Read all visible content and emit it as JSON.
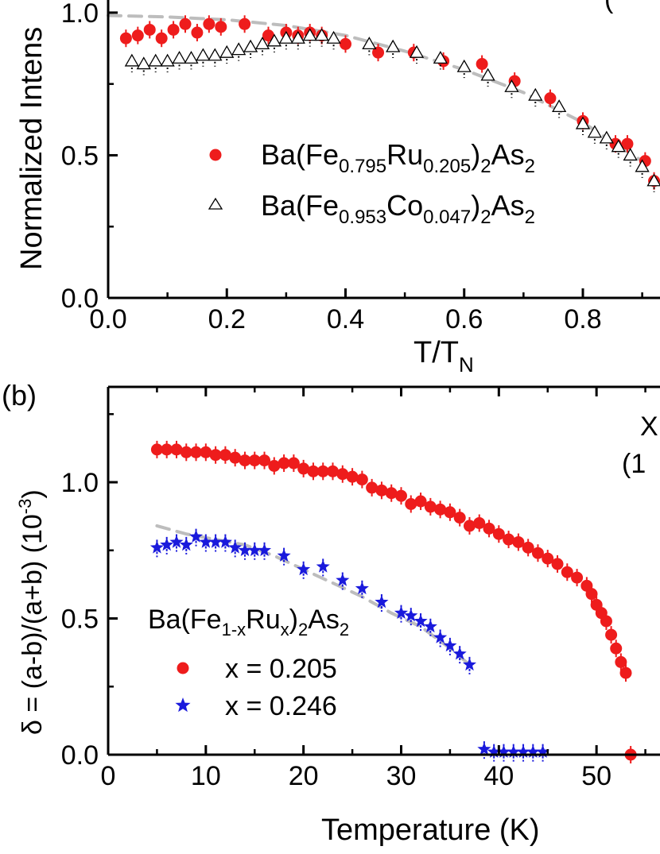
{
  "panel_a": {
    "label": "",
    "ylabel": "Normalized Intens",
    "xlabel": "T/T",
    "xlabel_sub": "N",
    "corner_text": "(",
    "legend": {
      "ru": {
        "pre": "Ba(Fe",
        "s1": "0.795",
        "mid": "Ru",
        "s2": "0.205",
        "close": ")",
        "s3": "2",
        "as": "As",
        "s4": "2"
      },
      "co": {
        "pre": "Ba(Fe",
        "s1": "0.953",
        "mid": "Co",
        "s2": "0.047",
        "close": ")",
        "s3": "2",
        "as": "As",
        "s4": "2"
      }
    }
  },
  "panel_b": {
    "label": "(b)",
    "ylabel_main": "δ = (a-b)/(a+b) (10",
    "ylabel_sup": "-3",
    "ylabel_close": ")",
    "xlabel": "Temperature (K)",
    "corner_text_1": "X",
    "corner_text_2": "(1",
    "legend": {
      "title": {
        "pre": "Ba(Fe",
        "s1": "1-x",
        "mid": "Ru",
        "s2": "x",
        "close": ")",
        "s3": "2",
        "as": "As",
        "s4": "2"
      },
      "x1": "x = 0.205",
      "x2": "x = 0.246"
    }
  },
  "colors": {
    "red": "#ee1c1c",
    "blue": "#1a1adc",
    "fit": "#bdbdbd"
  },
  "chart_data": [
    {
      "type": "scatter",
      "xlim": [
        0.0,
        0.93
      ],
      "ylim": [
        0.0,
        1.1
      ],
      "xticks": [
        "0.0",
        "0.2",
        "0.4",
        "0.6",
        "0.8"
      ],
      "yticks": [
        "0.0",
        "0.5",
        "1.0"
      ],
      "series": [
        {
          "name": "Ba(Fe0.795Ru0.205)2As2",
          "marker": "filled-circle",
          "x": [
            0.03,
            0.05,
            0.07,
            0.09,
            0.11,
            0.13,
            0.15,
            0.17,
            0.19,
            0.23,
            0.27,
            0.3,
            0.32,
            0.34,
            0.36,
            0.4,
            0.455,
            0.515,
            0.565,
            0.63,
            0.685,
            0.745,
            0.8,
            0.855,
            0.875,
            0.905,
            0.92
          ],
          "y": [
            0.91,
            0.92,
            0.94,
            0.91,
            0.94,
            0.96,
            0.93,
            0.96,
            0.95,
            0.96,
            0.92,
            0.93,
            0.92,
            0.93,
            0.92,
            0.89,
            0.86,
            0.86,
            0.83,
            0.82,
            0.76,
            0.7,
            0.62,
            0.54,
            0.54,
            0.48,
            0.41
          ]
        },
        {
          "name": "Ba(Fe0.953Co0.047)2As2",
          "marker": "open-triangle",
          "x": [
            0.04,
            0.06,
            0.08,
            0.1,
            0.12,
            0.14,
            0.16,
            0.18,
            0.2,
            0.22,
            0.24,
            0.26,
            0.28,
            0.3,
            0.32,
            0.34,
            0.36,
            0.38,
            0.44,
            0.48,
            0.52,
            0.56,
            0.6,
            0.64,
            0.68,
            0.72,
            0.76,
            0.8,
            0.82,
            0.84,
            0.86,
            0.88,
            0.9,
            0.92
          ],
          "y": [
            0.83,
            0.82,
            0.83,
            0.83,
            0.84,
            0.84,
            0.85,
            0.85,
            0.86,
            0.87,
            0.88,
            0.89,
            0.9,
            0.91,
            0.91,
            0.92,
            0.92,
            0.91,
            0.89,
            0.88,
            0.86,
            0.84,
            0.81,
            0.78,
            0.74,
            0.71,
            0.67,
            0.61,
            0.58,
            0.56,
            0.53,
            0.5,
            0.46,
            0.41
          ]
        },
        {
          "name": "",
          "marker": "dashed-line",
          "x": [
            0.0,
            0.1,
            0.2,
            0.3,
            0.4,
            0.5,
            0.6,
            0.7,
            0.8,
            0.9
          ],
          "y": [
            0.99,
            0.985,
            0.975,
            0.955,
            0.92,
            0.865,
            0.8,
            0.72,
            0.615,
            0.48
          ]
        }
      ]
    },
    {
      "type": "scatter",
      "xlim": [
        0,
        56.5
      ],
      "ylim": [
        0.0,
        1.35
      ],
      "xticks": [
        "0",
        "10",
        "20",
        "30",
        "40",
        "50"
      ],
      "yticks": [
        "0.0",
        "0.5",
        "1.0"
      ],
      "series": [
        {
          "name": "x = 0.205",
          "marker": "filled-circle",
          "x": [
            5,
            6,
            7,
            8,
            9,
            10,
            11,
            12,
            13,
            14,
            15,
            16,
            17,
            18,
            19,
            20,
            21,
            22,
            23,
            24,
            25,
            26,
            27,
            28,
            29,
            30,
            31,
            32,
            33,
            34,
            35,
            36,
            37,
            38,
            39,
            40,
            41,
            42,
            43,
            44,
            45,
            46,
            47,
            48,
            49,
            49.5,
            50,
            50.5,
            51,
            51.5,
            52,
            52.5,
            53
          ],
          "y": [
            1.12,
            1.12,
            1.12,
            1.11,
            1.11,
            1.11,
            1.1,
            1.1,
            1.09,
            1.08,
            1.08,
            1.08,
            1.06,
            1.07,
            1.07,
            1.05,
            1.04,
            1.04,
            1.04,
            1.03,
            1.02,
            1.01,
            0.98,
            0.97,
            0.96,
            0.95,
            0.92,
            0.93,
            0.91,
            0.9,
            0.89,
            0.87,
            0.84,
            0.85,
            0.83,
            0.81,
            0.79,
            0.78,
            0.76,
            0.74,
            0.72,
            0.7,
            0.67,
            0.65,
            0.62,
            0.59,
            0.55,
            0.52,
            0.49,
            0.44,
            0.39,
            0.34,
            0.3
          ]
        },
        {
          "name": "x = 0.246",
          "marker": "star",
          "x": [
            5,
            6,
            7,
            8,
            9,
            10,
            11,
            12,
            13,
            14,
            15,
            16,
            18,
            20,
            22,
            24,
            26,
            28,
            30,
            31,
            32,
            33,
            34,
            35,
            36,
            37
          ],
          "y": [
            0.76,
            0.77,
            0.78,
            0.77,
            0.8,
            0.78,
            0.78,
            0.78,
            0.76,
            0.75,
            0.75,
            0.75,
            0.73,
            0.68,
            0.69,
            0.64,
            0.61,
            0.56,
            0.52,
            0.51,
            0.49,
            0.47,
            0.43,
            0.4,
            0.37,
            0.33
          ]
        },
        {
          "name": "",
          "marker": "star",
          "x": [
            38.5,
            39.5,
            40.5,
            41.5,
            42.5,
            43.5,
            44.5
          ],
          "y": [
            0.02,
            0.01,
            0.01,
            0.01,
            0.01,
            0.01,
            0.01
          ]
        },
        {
          "name": "",
          "marker": "filled-circle",
          "x": [
            53.5
          ],
          "y": [
            0.0
          ]
        },
        {
          "name": "",
          "marker": "dashed-line",
          "x": [
            5,
            8,
            11,
            14,
            17,
            20,
            23,
            26,
            29,
            32,
            35,
            37
          ],
          "y": [
            0.84,
            0.81,
            0.79,
            0.77,
            0.73,
            0.68,
            0.63,
            0.58,
            0.52,
            0.47,
            0.39,
            0.33
          ]
        }
      ]
    }
  ]
}
